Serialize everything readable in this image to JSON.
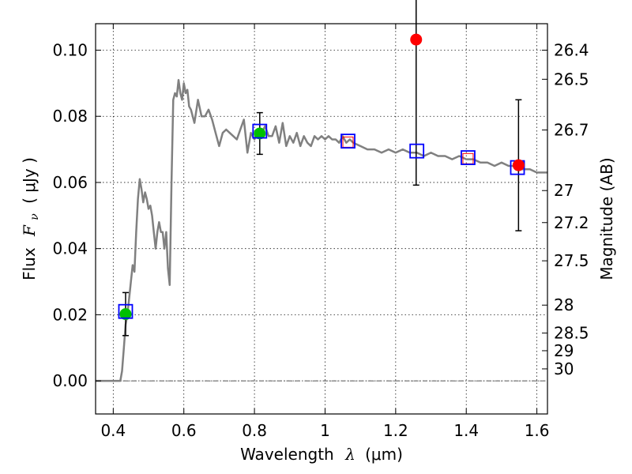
{
  "chart_data": {
    "type": "line",
    "xlabel_text": "Wavelength",
    "xlabel_symbol": "λ",
    "xlabel_unit": "(μm)",
    "ylabel_text": "Flux",
    "ylabel_symbol": "F",
    "ylabel_subscript": "ν",
    "ylabel_unit": "( μJy )",
    "y2label": "Magnitude (AB)",
    "xlim": [
      0.35,
      1.63
    ],
    "ylim": [
      -0.01,
      0.108
    ],
    "grid": true,
    "x_ticks": [
      {
        "value": 0.4,
        "label": "0.4"
      },
      {
        "value": 0.6,
        "label": "0.6"
      },
      {
        "value": 0.8,
        "label": "0.8"
      },
      {
        "value": 1.0,
        "label": "1"
      },
      {
        "value": 1.2,
        "label": "1.2"
      },
      {
        "value": 1.4,
        "label": "1.4"
      },
      {
        "value": 1.6,
        "label": "1.6"
      }
    ],
    "y_ticks": [
      {
        "value": 0.0,
        "label": "0.00"
      },
      {
        "value": 0.02,
        "label": "0.02"
      },
      {
        "value": 0.04,
        "label": "0.04"
      },
      {
        "value": 0.06,
        "label": "0.06"
      },
      {
        "value": 0.08,
        "label": "0.08"
      },
      {
        "value": 0.1,
        "label": "0.10"
      }
    ],
    "y2_ticks": [
      {
        "value": 26.4,
        "label": "26.4"
      },
      {
        "value": 26.5,
        "label": "26.5"
      },
      {
        "value": 26.7,
        "label": "26.7"
      },
      {
        "value": 27.0,
        "label": "27"
      },
      {
        "value": 27.2,
        "label": "27.2"
      },
      {
        "value": 27.5,
        "label": "27.5"
      },
      {
        "value": 28.0,
        "label": "28"
      },
      {
        "value": 28.5,
        "label": "28.5"
      },
      {
        "value": 29.0,
        "label": "29"
      },
      {
        "value": 30.0,
        "label": "30"
      }
    ],
    "model_spectrum": {
      "color": "#808080",
      "x": [
        0.35,
        0.41,
        0.415,
        0.42,
        0.425,
        0.43,
        0.435,
        0.44,
        0.445,
        0.45,
        0.455,
        0.46,
        0.465,
        0.47,
        0.475,
        0.48,
        0.485,
        0.49,
        0.495,
        0.5,
        0.505,
        0.51,
        0.515,
        0.52,
        0.525,
        0.53,
        0.535,
        0.54,
        0.545,
        0.55,
        0.555,
        0.56,
        0.565,
        0.57,
        0.575,
        0.58,
        0.585,
        0.59,
        0.595,
        0.6,
        0.605,
        0.61,
        0.615,
        0.62,
        0.63,
        0.64,
        0.65,
        0.66,
        0.67,
        0.68,
        0.69,
        0.7,
        0.71,
        0.72,
        0.73,
        0.74,
        0.75,
        0.76,
        0.77,
        0.78,
        0.79,
        0.8,
        0.81,
        0.82,
        0.83,
        0.84,
        0.85,
        0.86,
        0.87,
        0.88,
        0.89,
        0.9,
        0.91,
        0.92,
        0.93,
        0.94,
        0.95,
        0.96,
        0.97,
        0.98,
        0.99,
        1.0,
        1.01,
        1.02,
        1.03,
        1.04,
        1.05,
        1.06,
        1.07,
        1.08,
        1.1,
        1.12,
        1.14,
        1.16,
        1.18,
        1.2,
        1.22,
        1.24,
        1.26,
        1.28,
        1.3,
        1.32,
        1.34,
        1.36,
        1.38,
        1.4,
        1.42,
        1.44,
        1.46,
        1.48,
        1.5,
        1.52,
        1.54,
        1.56,
        1.58,
        1.6,
        1.63
      ],
      "y": [
        0.0,
        0.0,
        0.0,
        0.0,
        0.003,
        0.01,
        0.017,
        0.02,
        0.025,
        0.03,
        0.035,
        0.033,
        0.045,
        0.055,
        0.061,
        0.058,
        0.054,
        0.057,
        0.055,
        0.052,
        0.053,
        0.05,
        0.045,
        0.04,
        0.045,
        0.048,
        0.045,
        0.045,
        0.04,
        0.045,
        0.034,
        0.029,
        0.06,
        0.085,
        0.087,
        0.086,
        0.091,
        0.087,
        0.085,
        0.09,
        0.087,
        0.088,
        0.083,
        0.082,
        0.078,
        0.085,
        0.08,
        0.08,
        0.082,
        0.079,
        0.075,
        0.071,
        0.075,
        0.076,
        0.075,
        0.074,
        0.073,
        0.076,
        0.079,
        0.069,
        0.075,
        0.073,
        0.076,
        0.075,
        0.077,
        0.074,
        0.074,
        0.077,
        0.072,
        0.078,
        0.071,
        0.074,
        0.072,
        0.075,
        0.071,
        0.074,
        0.072,
        0.071,
        0.074,
        0.073,
        0.074,
        0.073,
        0.074,
        0.073,
        0.073,
        0.072,
        0.074,
        0.072,
        0.073,
        0.072,
        0.071,
        0.07,
        0.07,
        0.069,
        0.07,
        0.069,
        0.07,
        0.069,
        0.069,
        0.068,
        0.069,
        0.068,
        0.068,
        0.067,
        0.068,
        0.067,
        0.067,
        0.066,
        0.066,
        0.065,
        0.066,
        0.065,
        0.065,
        0.064,
        0.064,
        0.063,
        0.063
      ]
    },
    "model_photometry": {
      "color": "#0000ff",
      "marker": "open-square",
      "points": [
        {
          "x": 0.435,
          "y": 0.021
        },
        {
          "x": 0.815,
          "y": 0.0755
        },
        {
          "x": 1.065,
          "y": 0.0725
        },
        {
          "x": 1.26,
          "y": 0.0695
        },
        {
          "x": 1.405,
          "y": 0.0675
        },
        {
          "x": 1.545,
          "y": 0.0645
        }
      ]
    },
    "observed_green": {
      "color": "#00c000",
      "marker": "filled-circle",
      "points": [
        {
          "x": 0.435,
          "y": 0.0202,
          "err": 0.0065
        },
        {
          "x": 0.815,
          "y": 0.0748,
          "err": 0.0063
        }
      ]
    },
    "observed_red": {
      "color": "#ff0000",
      "marker": "filled-circle",
      "points": [
        {
          "x": 1.258,
          "y": 0.1032,
          "err": 0.044
        },
        {
          "x": 1.548,
          "y": 0.0652,
          "err": 0.0198
        }
      ]
    },
    "observed_red_open": {
      "color": "#ff0000",
      "marker": "open-square-small",
      "points": [
        {
          "x": 1.065,
          "y": 0.0722
        },
        {
          "x": 1.405,
          "y": 0.0672
        }
      ]
    }
  }
}
